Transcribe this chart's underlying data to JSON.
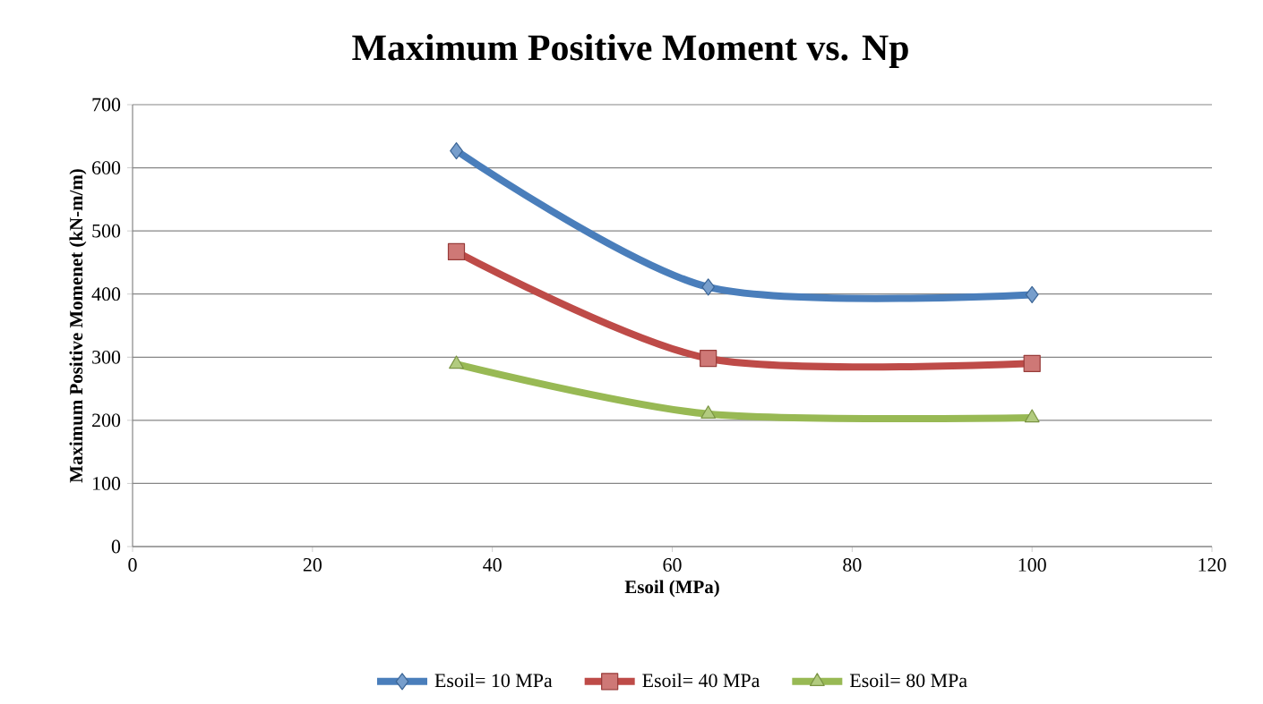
{
  "chart_data": {
    "type": "line",
    "title": "Maximum Positive Moment vs. Np",
    "xlabel": "Esoil (MPa)",
    "ylabel": "Maximum Positive Momenet (kN-m/m)",
    "x": [
      36,
      64,
      100
    ],
    "series": [
      {
        "name": "Esoil= 10 MPa",
        "color": "#4a7ebb",
        "marker": "diamond",
        "values": [
          627,
          411,
          399
        ]
      },
      {
        "name": "Esoil= 40 MPa",
        "color": "#be4b48",
        "marker": "square",
        "values": [
          467,
          298,
          290
        ]
      },
      {
        "name": "Esoil= 80 MPa",
        "color": "#98b954",
        "marker": "triangle",
        "values": [
          289,
          210,
          204
        ]
      }
    ],
    "xlim": [
      0,
      120
    ],
    "xticks": [
      0,
      20,
      40,
      60,
      80,
      100,
      120
    ],
    "ylim": [
      0,
      700
    ],
    "yticks": [
      0,
      100,
      200,
      300,
      400,
      500,
      600,
      700
    ],
    "grid": "y",
    "legend": "bottom",
    "line_style": "solid"
  }
}
